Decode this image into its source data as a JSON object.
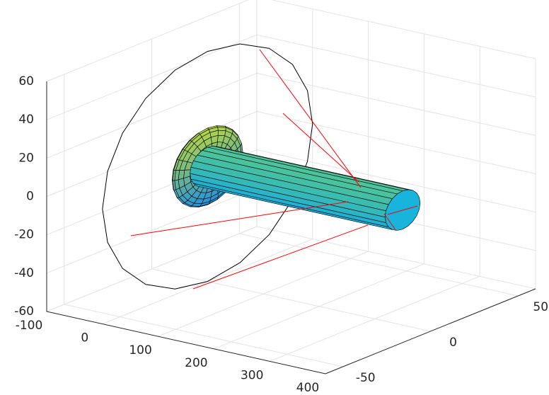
{
  "chart_data": {
    "type": "surface3d",
    "xlim": [
      -100,
      400
    ],
    "xticks": [
      -100,
      0,
      100,
      200,
      300,
      400
    ],
    "ylim": [
      -60,
      60
    ],
    "yticks": [
      -50,
      0,
      50
    ],
    "zlim": [
      -60,
      60
    ],
    "zticks": [
      -60,
      -40,
      -20,
      0,
      20,
      40,
      60
    ],
    "grid": true
  }
}
